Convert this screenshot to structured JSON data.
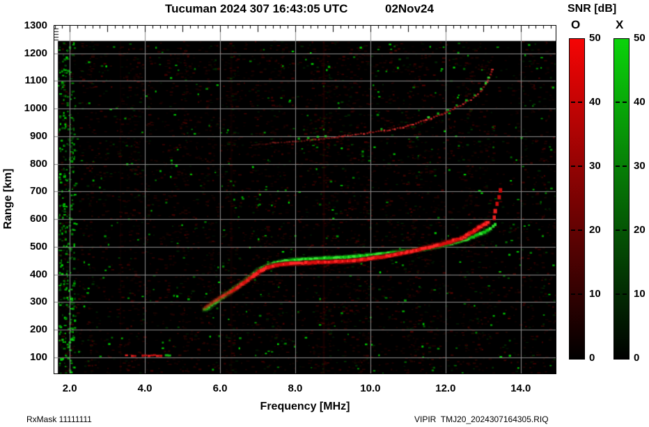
{
  "header": {
    "station_title": "Tucuman 2024 307 16:43:05 UTC",
    "date_label": "02Nov24"
  },
  "footer": {
    "rx_mask": "RxMask 11111111",
    "file_label": "VIPIR  TMJ20_2024307164305.RIQ"
  },
  "colorbar": {
    "title": "SNR [dB]",
    "o_label": "O",
    "x_label": "X",
    "tick_values": [
      50,
      40,
      30,
      20,
      10,
      0
    ],
    "tick_labels": [
      "50",
      "40",
      "30",
      "20",
      "10",
      "0"
    ],
    "o_color": "#f50505",
    "x_color": "#0bd30b",
    "bottom_color": "#000000",
    "range_db": [
      0,
      50
    ]
  },
  "chart_data": {
    "type": "heatmap",
    "title": "Tucuman 2024 307 16:43:05 UTC",
    "subtitle": "02Nov24",
    "xlabel": "Frequency [MHz]",
    "ylabel": "Range [km]",
    "xlim": [
      1.59,
      14.93
    ],
    "ylim": [
      42,
      1300
    ],
    "x_tick_values": [
      2,
      4,
      6,
      8,
      10,
      12,
      14
    ],
    "x_tick_labels": [
      "2.0",
      "4.0",
      "6.0",
      "8.0",
      "10.0",
      "12.0",
      "14.0"
    ],
    "y_tick_values": [
      1300,
      1200,
      1100,
      1000,
      900,
      800,
      700,
      600,
      500,
      400,
      300,
      200,
      100
    ],
    "y_tick_labels": [
      "1300",
      "1200",
      "1100",
      "1000",
      "900",
      "800",
      "700",
      "600",
      "500",
      "400",
      "300",
      "200",
      "100"
    ],
    "x_minor_step": 0.2,
    "x_major_step": 1.0,
    "y_minor_ruler_km": [
      1250,
      1260,
      1270,
      1280,
      1290
    ],
    "grid": {
      "show": true,
      "color": "#8d8d8d",
      "x_step": 2,
      "y_step": 100
    },
    "data_region": {
      "f_start": 1.685,
      "km_top": 1245
    },
    "background": "#000000",
    "legend": {
      "O": "red O-mode SNR",
      "X": "green X-mode SNR",
      "position": "right colorbars"
    },
    "series": [
      {
        "id": "second-hop-o",
        "name": "O-mode second-hop F trace",
        "style": "trace",
        "step": 4,
        "w": 3.2,
        "h": 2.4,
        "core": "rgb(150,22,22)",
        "bright": "rgb(220,50,50)",
        "bright_prob": 0.3,
        "alpha": 0.92,
        "fade_in": true,
        "points": [
          [
            6.85,
            868
          ],
          [
            7.2,
            872
          ],
          [
            7.4,
            876
          ],
          [
            7.93,
            880
          ],
          [
            8.48,
            888
          ],
          [
            9.04,
            896
          ],
          [
            9.6,
            906
          ],
          [
            10.15,
            916
          ],
          [
            10.52,
            923
          ],
          [
            10.8,
            930
          ],
          [
            11.07,
            940
          ],
          [
            11.35,
            953
          ],
          [
            11.63,
            965
          ],
          [
            11.9,
            980
          ],
          [
            12.19,
            998
          ],
          [
            12.46,
            1016
          ],
          [
            12.74,
            1038
          ],
          [
            12.93,
            1061
          ],
          [
            13.07,
            1086
          ],
          [
            13.17,
            1111
          ],
          [
            13.22,
            1134
          ],
          [
            13.26,
            1152
          ]
        ]
      },
      {
        "id": "second-hop-x-dots",
        "name": "X-mode second-hop echoes",
        "style": "dots",
        "w": 3.4,
        "h": 3,
        "core": "#14a816",
        "bright": "#2ed32e",
        "bright_prob": 0.4,
        "alpha": 0.95,
        "points": [
          [
            8.1,
            891
          ],
          [
            8.35,
            894
          ],
          [
            8.6,
            897
          ],
          [
            8.8,
            900
          ],
          [
            10.3,
            927
          ],
          [
            11.55,
            970
          ],
          [
            11.8,
            982
          ],
          [
            12.05,
            996
          ],
          [
            12.3,
            1012
          ],
          [
            12.55,
            1030
          ],
          [
            12.78,
            1049
          ],
          [
            12.95,
            1070
          ],
          [
            13.07,
            1093
          ],
          [
            13.15,
            1112
          ]
        ]
      },
      {
        "id": "x-trace-main",
        "name": "X-mode main F trace",
        "style": "trace",
        "step": 2.6,
        "w": 5,
        "h": 3.6,
        "halo": "rgba(15,95,15,0.45)",
        "core": "#0fbf12",
        "bright": "#35e635",
        "bright_prob": 0.45,
        "alpha": 1,
        "points": [
          [
            5.6,
            272
          ],
          [
            5.85,
            298
          ],
          [
            6.1,
            323
          ],
          [
            6.38,
            348
          ],
          [
            6.65,
            374
          ],
          [
            6.88,
            400
          ],
          [
            7.08,
            419
          ],
          [
            7.28,
            433
          ],
          [
            7.52,
            443
          ],
          [
            7.78,
            450
          ],
          [
            8.1,
            454
          ],
          [
            8.5,
            457
          ],
          [
            9.0,
            460
          ],
          [
            9.5,
            465
          ],
          [
            10.0,
            470
          ],
          [
            10.4,
            476
          ],
          [
            10.8,
            482
          ],
          [
            11.15,
            487
          ],
          [
            11.5,
            494
          ],
          [
            11.85,
            503
          ],
          [
            12.2,
            514
          ],
          [
            12.5,
            526
          ],
          [
            12.75,
            537
          ],
          [
            12.95,
            548
          ],
          [
            13.1,
            558
          ],
          [
            13.22,
            568
          ]
        ]
      },
      {
        "id": "o-trace-main",
        "name": "O-mode main F trace",
        "style": "trace",
        "step": 2.6,
        "w": 5,
        "h": 4,
        "halo": "rgba(120,8,8,0.5)",
        "core": "#d90d0d",
        "bright": "#ff2626",
        "bright_prob": 0.45,
        "alpha": 1,
        "fade_in": true,
        "points": [
          [
            5.57,
            276
          ],
          [
            5.72,
            292
          ],
          [
            5.9,
            308
          ],
          [
            6.08,
            322
          ],
          [
            6.27,
            336
          ],
          [
            6.45,
            353
          ],
          [
            6.63,
            370
          ],
          [
            6.82,
            388
          ],
          [
            6.96,
            402
          ],
          [
            7.1,
            415
          ],
          [
            7.24,
            425
          ],
          [
            7.42,
            432
          ],
          [
            7.62,
            437
          ],
          [
            7.94,
            440
          ],
          [
            8.3,
            442
          ],
          [
            8.77,
            445
          ],
          [
            9.22,
            447
          ],
          [
            9.7,
            452
          ],
          [
            10.15,
            460
          ],
          [
            10.6,
            470
          ],
          [
            11.0,
            481
          ],
          [
            11.35,
            492
          ],
          [
            11.72,
            504
          ],
          [
            12.1,
            517
          ],
          [
            12.46,
            533
          ],
          [
            12.7,
            552
          ],
          [
            12.9,
            570
          ],
          [
            13.05,
            583
          ],
          [
            13.17,
            593
          ]
        ]
      },
      {
        "id": "o-asymptote-dots",
        "name": "O-mode critical-frequency asymptote",
        "style": "dots",
        "w": 5,
        "h": 6.5,
        "core": "#c90c0c",
        "bright": "#e82020",
        "bright_prob": 0.4,
        "alpha": 1,
        "points": [
          [
            13.29,
            606
          ],
          [
            13.33,
            630
          ],
          [
            13.37,
            655
          ],
          [
            13.42,
            680
          ],
          [
            13.46,
            705
          ]
        ]
      },
      {
        "id": "x-end-dots",
        "name": "X-mode trace end echoes",
        "style": "dots",
        "w": 4,
        "h": 4,
        "core": "#12c212",
        "bright": "#2ad82a",
        "bright_prob": 0.4,
        "alpha": 1,
        "points": [
          [
            13.27,
            575
          ],
          [
            13.32,
            582
          ]
        ]
      },
      {
        "id": "e-region-segment",
        "name": "sporadic-E / 100 km echo segment",
        "style": "trace",
        "step": 4,
        "w": 4.2,
        "h": 3,
        "gap": 0.28,
        "core": "#c31111",
        "bright": "#f52222",
        "bright_prob": 0.5,
        "alpha": 0.95,
        "points": [
          [
            3.45,
            107
          ],
          [
            4.02,
            106
          ],
          [
            4.5,
            107
          ]
        ]
      },
      {
        "id": "e-region-x-echo",
        "name": "X-mode echo near 100 km",
        "style": "dots",
        "w": 5,
        "h": 3.2,
        "core": "#12b412",
        "bright": "#26cf26",
        "bright_prob": 0.4,
        "alpha": 0.95,
        "points": [
          [
            4.58,
            107
          ],
          [
            4.66,
            106
          ]
        ]
      }
    ],
    "noise": {
      "seed": 20241102,
      "dim_red_count": 9000,
      "dim_green_count": 2100,
      "bright_green_count": 340,
      "left_green_band": {
        "f_max": 2.12,
        "count": 330
      },
      "boost_columns": [
        {
          "f": 2.55,
          "w": 4,
          "boost": 0.8
        },
        {
          "f": 3.35,
          "w": 4,
          "boost": 0.8
        },
        {
          "f": 5.05,
          "w": 4,
          "boost": 0.7
        },
        {
          "f": 6.28,
          "w": 5,
          "boost": 0.9
        },
        {
          "f": 8.8,
          "w": 6,
          "boost": 1.4
        },
        {
          "f": 9.95,
          "w": 4,
          "boost": 0.8
        },
        {
          "f": 11.05,
          "w": 4,
          "boost": 0.6
        },
        {
          "f": 12.6,
          "w": 5,
          "boost": 0.7
        }
      ],
      "stripes": [
        {
          "f": 8.76,
          "alpha": 0.17,
          "w": 3
        },
        {
          "f": 6.3,
          "alpha": 0.1,
          "w": 3
        },
        {
          "f": 3.35,
          "alpha": 0.08,
          "w": 2
        }
      ]
    }
  }
}
